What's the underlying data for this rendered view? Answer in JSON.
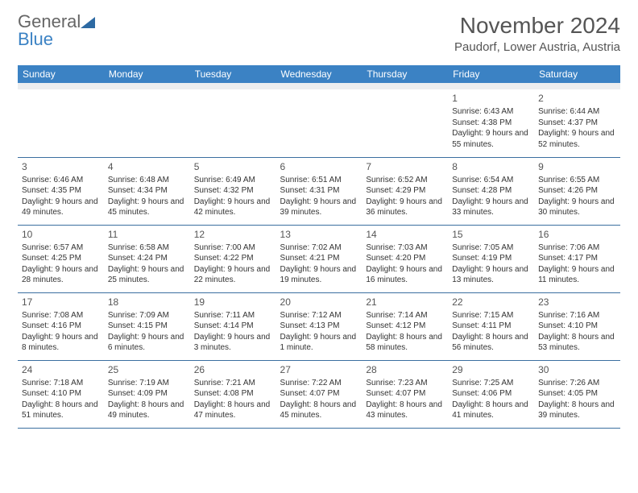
{
  "logo": {
    "general": "General",
    "blue": "Blue"
  },
  "title": "November 2024",
  "location": "Paudorf, Lower Austria, Austria",
  "weekdays": [
    "Sunday",
    "Monday",
    "Tuesday",
    "Wednesday",
    "Thursday",
    "Friday",
    "Saturday"
  ],
  "colors": {
    "header_bg": "#3b82c4",
    "header_text": "#ffffff",
    "cell_border": "#3b6fa0",
    "spacer_bg": "#eceef0",
    "text": "#333333",
    "title": "#555555"
  },
  "weeks": [
    [
      null,
      null,
      null,
      null,
      null,
      {
        "n": "1",
        "sr": "Sunrise: 6:43 AM",
        "ss": "Sunset: 4:38 PM",
        "dl": "Daylight: 9 hours and 55 minutes."
      },
      {
        "n": "2",
        "sr": "Sunrise: 6:44 AM",
        "ss": "Sunset: 4:37 PM",
        "dl": "Daylight: 9 hours and 52 minutes."
      }
    ],
    [
      {
        "n": "3",
        "sr": "Sunrise: 6:46 AM",
        "ss": "Sunset: 4:35 PM",
        "dl": "Daylight: 9 hours and 49 minutes."
      },
      {
        "n": "4",
        "sr": "Sunrise: 6:48 AM",
        "ss": "Sunset: 4:34 PM",
        "dl": "Daylight: 9 hours and 45 minutes."
      },
      {
        "n": "5",
        "sr": "Sunrise: 6:49 AM",
        "ss": "Sunset: 4:32 PM",
        "dl": "Daylight: 9 hours and 42 minutes."
      },
      {
        "n": "6",
        "sr": "Sunrise: 6:51 AM",
        "ss": "Sunset: 4:31 PM",
        "dl": "Daylight: 9 hours and 39 minutes."
      },
      {
        "n": "7",
        "sr": "Sunrise: 6:52 AM",
        "ss": "Sunset: 4:29 PM",
        "dl": "Daylight: 9 hours and 36 minutes."
      },
      {
        "n": "8",
        "sr": "Sunrise: 6:54 AM",
        "ss": "Sunset: 4:28 PM",
        "dl": "Daylight: 9 hours and 33 minutes."
      },
      {
        "n": "9",
        "sr": "Sunrise: 6:55 AM",
        "ss": "Sunset: 4:26 PM",
        "dl": "Daylight: 9 hours and 30 minutes."
      }
    ],
    [
      {
        "n": "10",
        "sr": "Sunrise: 6:57 AM",
        "ss": "Sunset: 4:25 PM",
        "dl": "Daylight: 9 hours and 28 minutes."
      },
      {
        "n": "11",
        "sr": "Sunrise: 6:58 AM",
        "ss": "Sunset: 4:24 PM",
        "dl": "Daylight: 9 hours and 25 minutes."
      },
      {
        "n": "12",
        "sr": "Sunrise: 7:00 AM",
        "ss": "Sunset: 4:22 PM",
        "dl": "Daylight: 9 hours and 22 minutes."
      },
      {
        "n": "13",
        "sr": "Sunrise: 7:02 AM",
        "ss": "Sunset: 4:21 PM",
        "dl": "Daylight: 9 hours and 19 minutes."
      },
      {
        "n": "14",
        "sr": "Sunrise: 7:03 AM",
        "ss": "Sunset: 4:20 PM",
        "dl": "Daylight: 9 hours and 16 minutes."
      },
      {
        "n": "15",
        "sr": "Sunrise: 7:05 AM",
        "ss": "Sunset: 4:19 PM",
        "dl": "Daylight: 9 hours and 13 minutes."
      },
      {
        "n": "16",
        "sr": "Sunrise: 7:06 AM",
        "ss": "Sunset: 4:17 PM",
        "dl": "Daylight: 9 hours and 11 minutes."
      }
    ],
    [
      {
        "n": "17",
        "sr": "Sunrise: 7:08 AM",
        "ss": "Sunset: 4:16 PM",
        "dl": "Daylight: 9 hours and 8 minutes."
      },
      {
        "n": "18",
        "sr": "Sunrise: 7:09 AM",
        "ss": "Sunset: 4:15 PM",
        "dl": "Daylight: 9 hours and 6 minutes."
      },
      {
        "n": "19",
        "sr": "Sunrise: 7:11 AM",
        "ss": "Sunset: 4:14 PM",
        "dl": "Daylight: 9 hours and 3 minutes."
      },
      {
        "n": "20",
        "sr": "Sunrise: 7:12 AM",
        "ss": "Sunset: 4:13 PM",
        "dl": "Daylight: 9 hours and 1 minute."
      },
      {
        "n": "21",
        "sr": "Sunrise: 7:14 AM",
        "ss": "Sunset: 4:12 PM",
        "dl": "Daylight: 8 hours and 58 minutes."
      },
      {
        "n": "22",
        "sr": "Sunrise: 7:15 AM",
        "ss": "Sunset: 4:11 PM",
        "dl": "Daylight: 8 hours and 56 minutes."
      },
      {
        "n": "23",
        "sr": "Sunrise: 7:16 AM",
        "ss": "Sunset: 4:10 PM",
        "dl": "Daylight: 8 hours and 53 minutes."
      }
    ],
    [
      {
        "n": "24",
        "sr": "Sunrise: 7:18 AM",
        "ss": "Sunset: 4:10 PM",
        "dl": "Daylight: 8 hours and 51 minutes."
      },
      {
        "n": "25",
        "sr": "Sunrise: 7:19 AM",
        "ss": "Sunset: 4:09 PM",
        "dl": "Daylight: 8 hours and 49 minutes."
      },
      {
        "n": "26",
        "sr": "Sunrise: 7:21 AM",
        "ss": "Sunset: 4:08 PM",
        "dl": "Daylight: 8 hours and 47 minutes."
      },
      {
        "n": "27",
        "sr": "Sunrise: 7:22 AM",
        "ss": "Sunset: 4:07 PM",
        "dl": "Daylight: 8 hours and 45 minutes."
      },
      {
        "n": "28",
        "sr": "Sunrise: 7:23 AM",
        "ss": "Sunset: 4:07 PM",
        "dl": "Daylight: 8 hours and 43 minutes."
      },
      {
        "n": "29",
        "sr": "Sunrise: 7:25 AM",
        "ss": "Sunset: 4:06 PM",
        "dl": "Daylight: 8 hours and 41 minutes."
      },
      {
        "n": "30",
        "sr": "Sunrise: 7:26 AM",
        "ss": "Sunset: 4:05 PM",
        "dl": "Daylight: 8 hours and 39 minutes."
      }
    ]
  ]
}
